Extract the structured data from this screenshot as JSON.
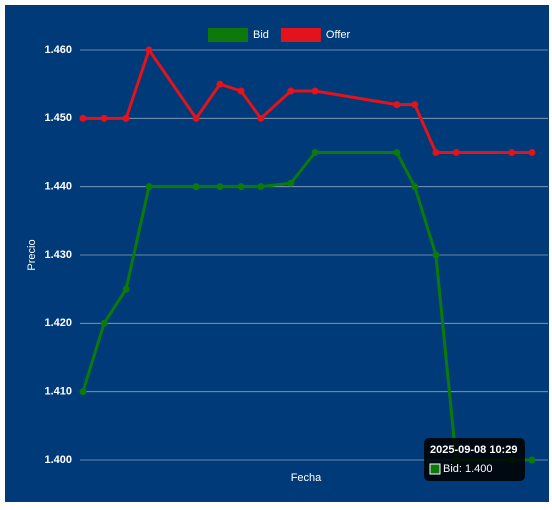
{
  "chart_data": {
    "type": "line",
    "x_label": "Fecha",
    "y_label": "Precio",
    "x": [
      0,
      4.7,
      9.6,
      14.7,
      25.2,
      30.5,
      35.2,
      39.6,
      46.3,
      51.7,
      69.9,
      73.9,
      78.6,
      83.1,
      95.5,
      100
    ],
    "xlim": [
      0,
      100
    ],
    "series": [
      {
        "name": "Bid",
        "color": "#0b7a0b",
        "values": [
          1.41,
          1.42,
          1.425,
          1.44,
          1.44,
          1.44,
          1.44,
          1.44,
          1.4405,
          1.445,
          1.445,
          1.44,
          1.43,
          1.4,
          1.4,
          1.4
        ]
      },
      {
        "name": "Offer",
        "color": "#e3131b",
        "values": [
          1.45,
          1.45,
          1.45,
          1.46,
          1.45,
          1.455,
          1.454,
          1.45,
          1.454,
          1.454,
          1.452,
          1.452,
          1.445,
          1.445,
          1.445,
          1.445
        ]
      }
    ],
    "ylim": [
      1.4,
      1.46
    ],
    "yticks": [
      {
        "value": 1.4,
        "label": "1.400"
      },
      {
        "value": 1.41,
        "label": "1.410"
      },
      {
        "value": 1.42,
        "label": "1.420"
      },
      {
        "value": 1.43,
        "label": "1.430"
      },
      {
        "value": 1.44,
        "label": "1.440"
      },
      {
        "value": 1.45,
        "label": "1.450"
      },
      {
        "value": 1.46,
        "label": "1.460"
      }
    ],
    "grid": true,
    "legend": "top",
    "tooltip": {
      "title": "2025-09-08 10:29",
      "label": "Bid: 1.400"
    }
  }
}
